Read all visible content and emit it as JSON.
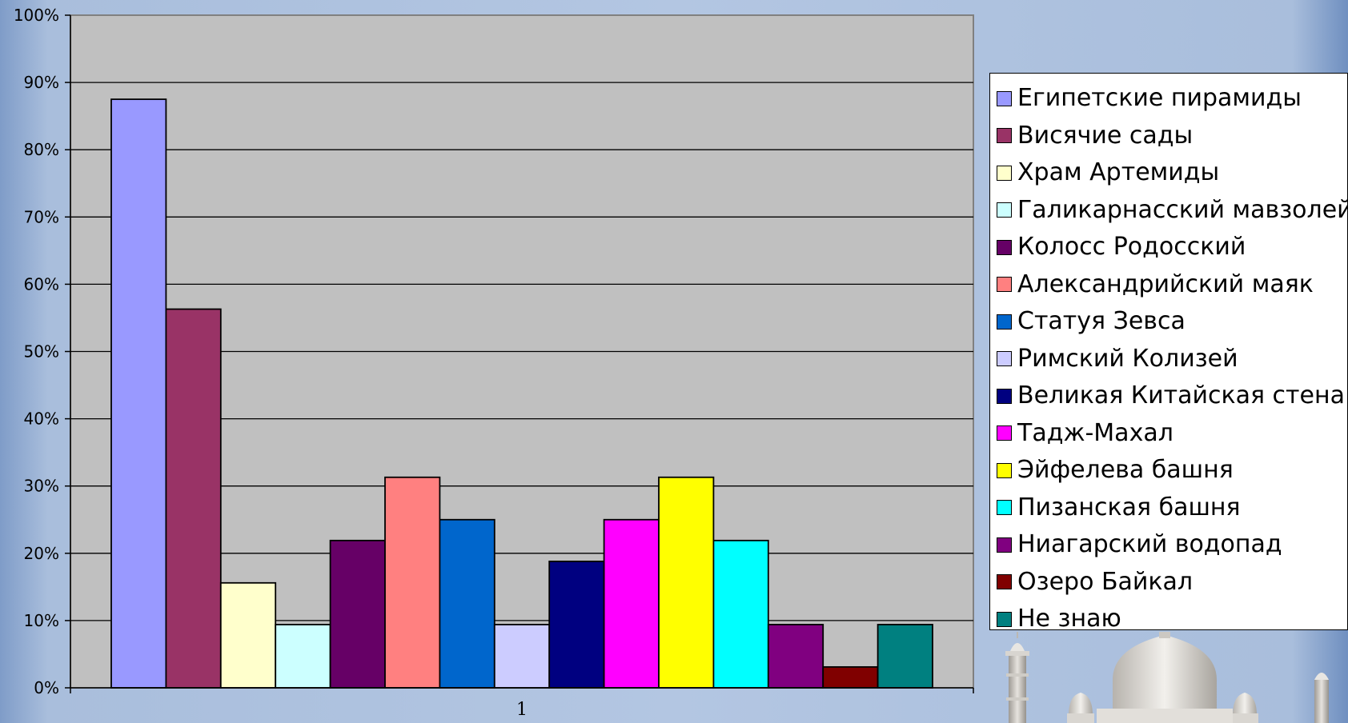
{
  "chart_data": {
    "type": "bar",
    "categories": [
      "1"
    ],
    "series": [
      {
        "name": "Египетские пирамиды",
        "values": [
          87.5
        ],
        "color": "#9999ff"
      },
      {
        "name": "Висячие сады",
        "values": [
          56.3
        ],
        "color": "#993366"
      },
      {
        "name": "Храм Артемиды",
        "values": [
          15.6
        ],
        "color": "#ffffcc"
      },
      {
        "name": "Галикарнасский мавзолей",
        "values": [
          9.4
        ],
        "color": "#ccffff"
      },
      {
        "name": "Колосс Родосский",
        "values": [
          21.9
        ],
        "color": "#660066"
      },
      {
        "name": "Александрийский маяк",
        "values": [
          31.3
        ],
        "color": "#ff8080"
      },
      {
        "name": "Статуя Зевса",
        "values": [
          25.0
        ],
        "color": "#0066cc"
      },
      {
        "name": "Римский Колизей",
        "values": [
          9.4
        ],
        "color": "#ccccff"
      },
      {
        "name": "Великая Китайская стена",
        "values": [
          18.8
        ],
        "color": "#000080"
      },
      {
        "name": "Тадж-Махал",
        "values": [
          25.0
        ],
        "color": "#ff00ff"
      },
      {
        "name": "Эйфелева башня",
        "values": [
          31.3
        ],
        "color": "#ffff00"
      },
      {
        "name": "Пизанская башня",
        "values": [
          21.9
        ],
        "color": "#00ffff"
      },
      {
        "name": "Ниагарский водопад",
        "values": [
          9.4
        ],
        "color": "#800080"
      },
      {
        "name": "Озеро Байкал",
        "values": [
          3.1
        ],
        "color": "#800000"
      },
      {
        "name": "Не знаю",
        "values": [
          9.4
        ],
        "color": "#008080"
      }
    ],
    "y_ticks": [
      "0%",
      "10%",
      "20%",
      "30%",
      "40%",
      "50%",
      "60%",
      "70%",
      "80%",
      "90%",
      "100%"
    ],
    "ylim": [
      0,
      100
    ],
    "y_unit": "%",
    "grid": true,
    "legend_position": "right",
    "plot_background": "#c0c0c0"
  }
}
